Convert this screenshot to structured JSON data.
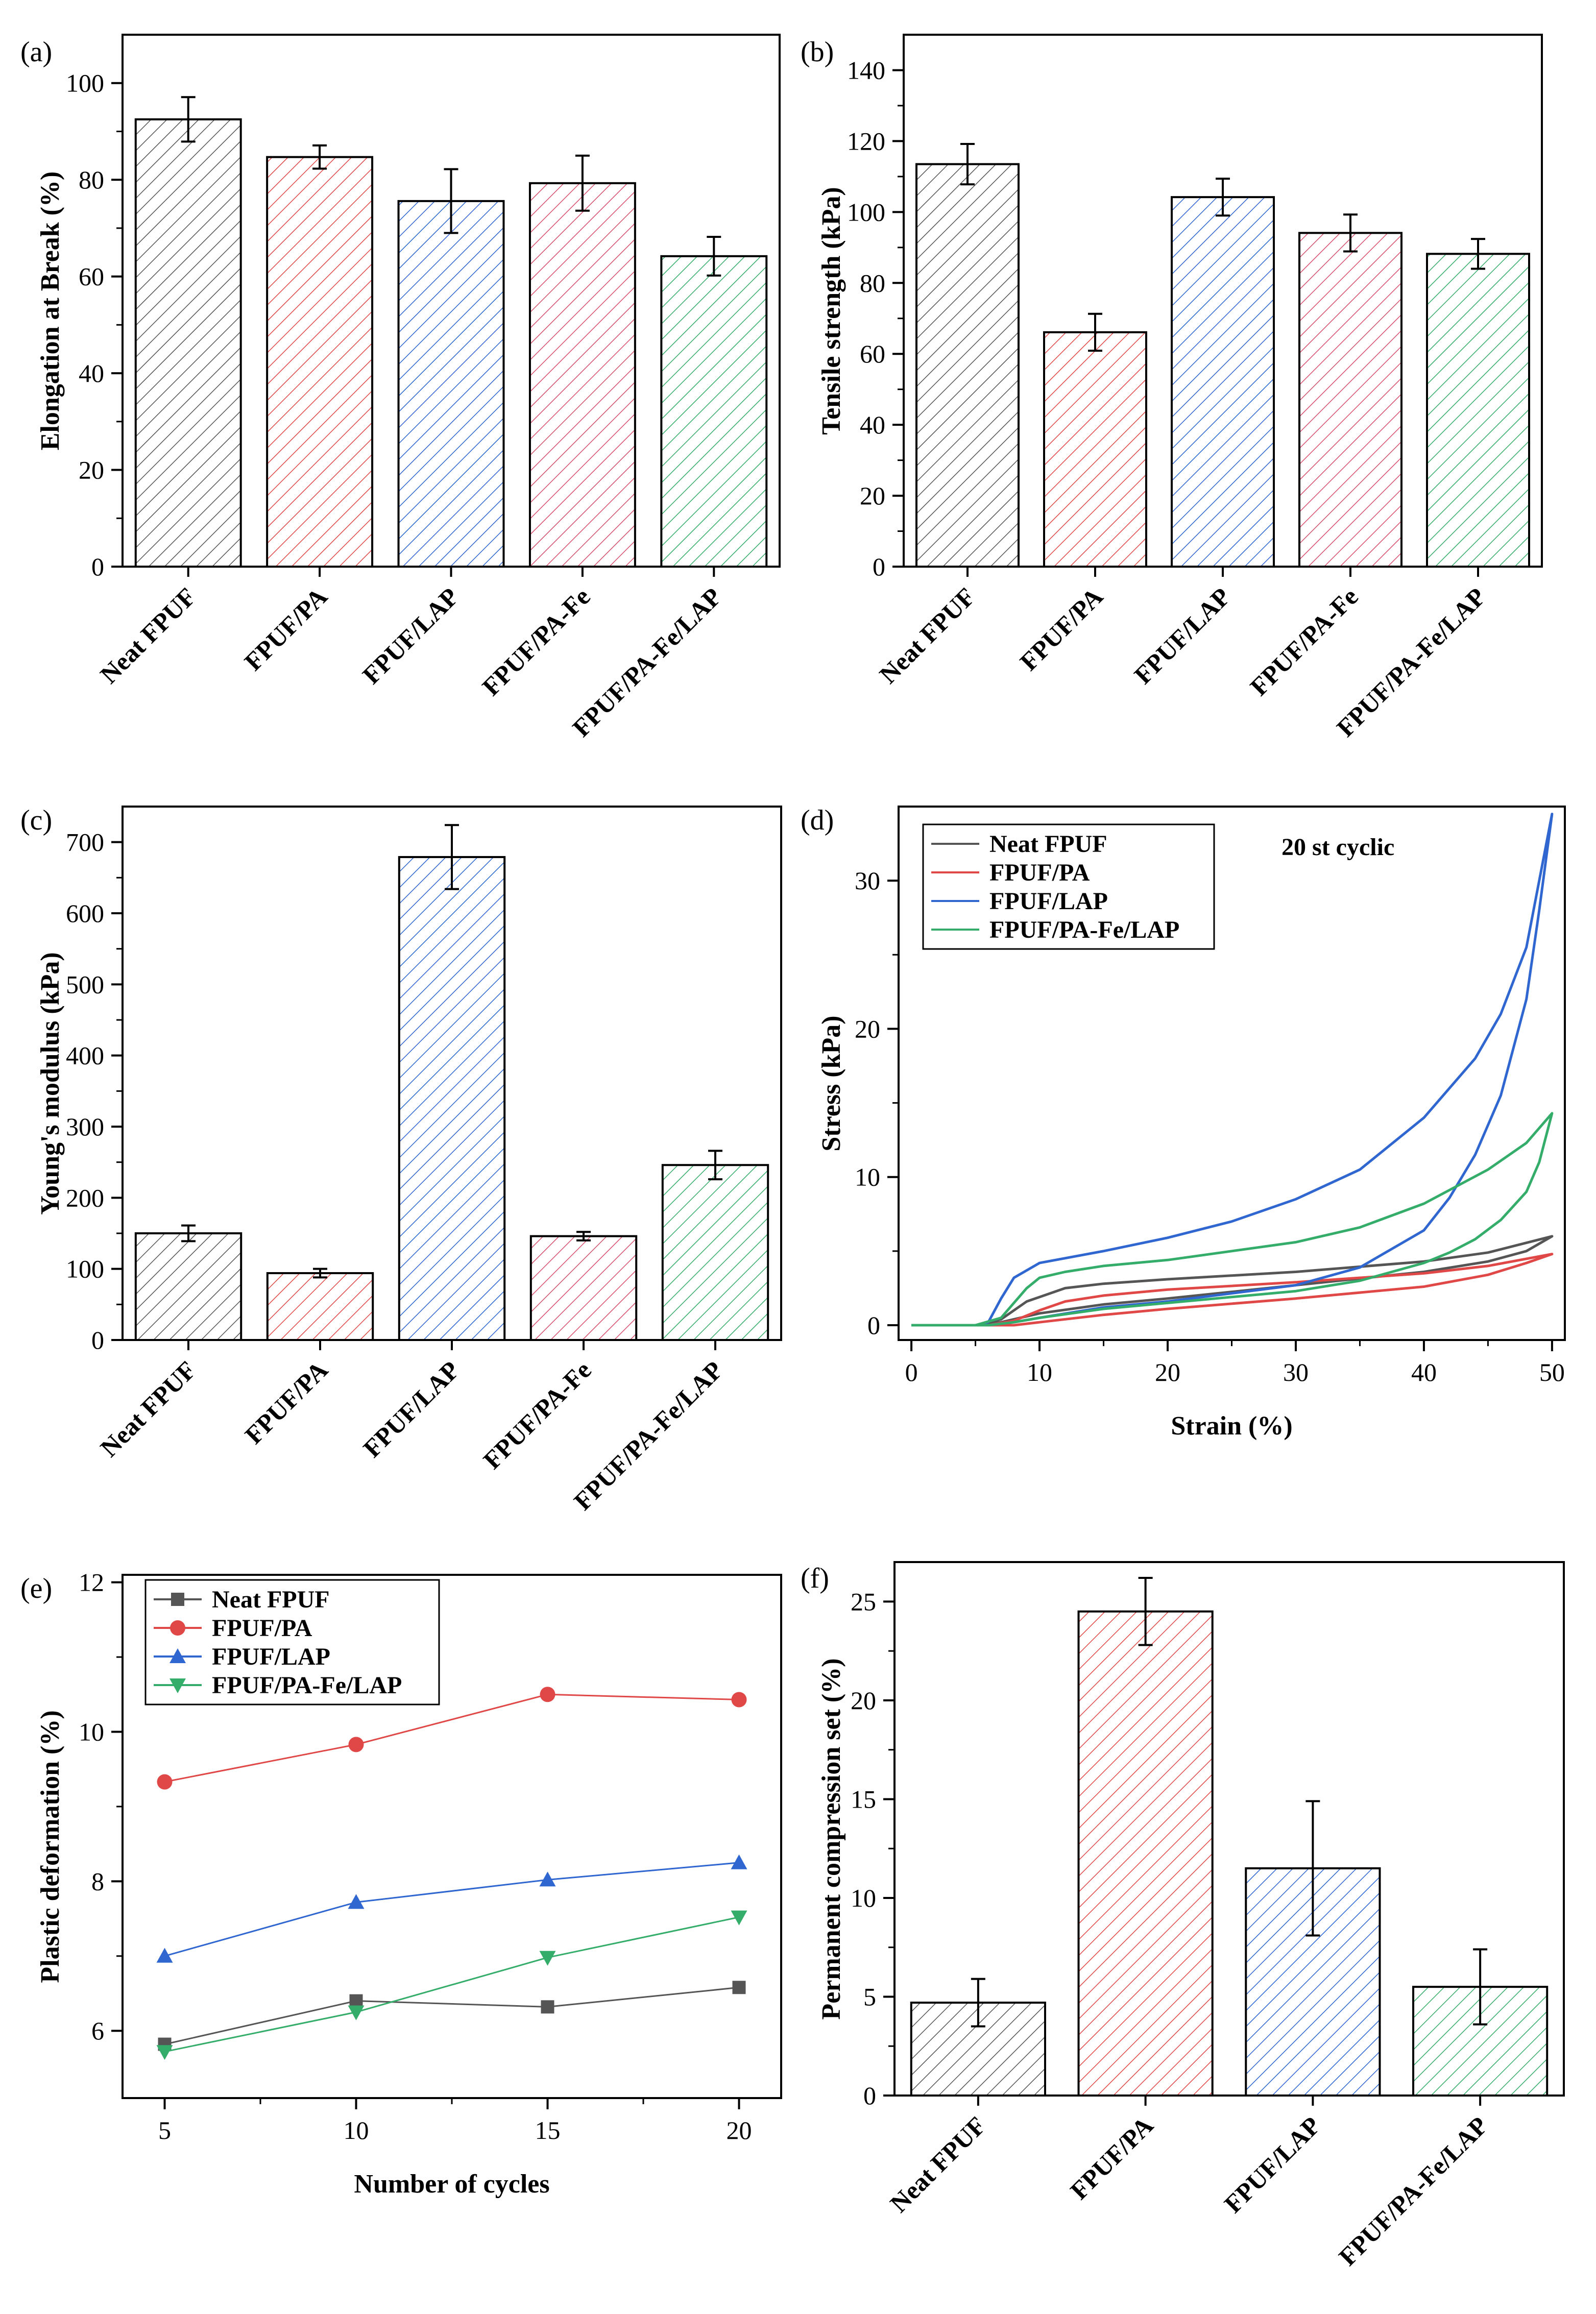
{
  "colors": {
    "Neat FPUF": "#555555",
    "FPUF/PA": "#e04848",
    "FPUF/LAP": "#2f66d0",
    "FPUF/PA-Fe": "#d64f6e",
    "FPUF/PA-Fe/LAP": "#35ad6a"
  },
  "chart_data": [
    {
      "panel": "(a)",
      "type": "bar",
      "categories": [
        "Neat FPUF",
        "FPUF/PA",
        "FPUF/LAP",
        "FPUF/PA-Fe",
        "FPUF/PA-Fe/LAP"
      ],
      "values": [
        92.5,
        84.7,
        75.6,
        79.3,
        64.2
      ],
      "errors": [
        4.6,
        2.4,
        6.6,
        5.7,
        4.0
      ],
      "xlabel": "",
      "ylabel": "Elongation at Break (%)",
      "ylim": [
        0,
        110
      ],
      "yticks": [
        0,
        20,
        40,
        60,
        80,
        100
      ]
    },
    {
      "panel": "(b)",
      "type": "bar",
      "categories": [
        "Neat FPUF",
        "FPUF/PA",
        "FPUF/LAP",
        "FPUF/PA-Fe",
        "FPUF/PA-Fe/LAP"
      ],
      "values": [
        113.5,
        66.1,
        104.2,
        94.1,
        88.2
      ],
      "errors": [
        5.7,
        5.2,
        5.2,
        5.2,
        4.2
      ],
      "xlabel": "",
      "ylabel": "Tensile strength (kPa)",
      "ylim": [
        0,
        150
      ],
      "yticks": [
        0,
        20,
        40,
        60,
        80,
        100,
        120,
        140
      ]
    },
    {
      "panel": "(c)",
      "type": "bar",
      "categories": [
        "Neat FPUF",
        "FPUF/PA",
        "FPUF/LAP",
        "FPUF/PA-Fe",
        "FPUF/PA-Fe/LAP"
      ],
      "values": [
        150,
        94,
        679,
        146,
        246
      ],
      "errors": [
        11,
        6,
        45,
        6,
        20
      ],
      "xlabel": "",
      "ylabel": "Young's modulus (kPa)",
      "ylim": [
        0,
        750
      ],
      "yticks": [
        0,
        100,
        200,
        300,
        400,
        500,
        600,
        700
      ]
    },
    {
      "panel": "(d)",
      "type": "line",
      "xlabel": "Strain (%)",
      "ylabel": "Stress (kPa)",
      "xlim": [
        -1,
        51
      ],
      "ylim": [
        -1,
        35
      ],
      "xticks": [
        0,
        10,
        20,
        30,
        40,
        50
      ],
      "yticks": [
        0,
        10,
        20,
        30
      ],
      "annotation": "20 st cyclic",
      "legend": [
        "Neat FPUF",
        "FPUF/PA",
        "FPUF/LAP",
        "FPUF/PA-Fe/LAP"
      ],
      "series": [
        {
          "name": "Neat FPUF",
          "color": "#555555",
          "x": [
            0,
            5,
            7,
            9,
            12,
            15,
            20,
            30,
            40,
            45,
            50,
            48,
            45,
            40,
            30,
            20,
            15,
            10,
            7,
            5,
            0
          ],
          "y": [
            0,
            0,
            0.4,
            1.6,
            2.5,
            2.8,
            3.1,
            3.6,
            4.3,
            4.9,
            6.0,
            5.0,
            4.3,
            3.6,
            2.7,
            1.8,
            1.4,
            0.8,
            0.2,
            0,
            0
          ]
        },
        {
          "name": "FPUF/PA",
          "color": "#e04848",
          "x": [
            0,
            6,
            8,
            10,
            12,
            15,
            20,
            30,
            40,
            45,
            50,
            48,
            45,
            40,
            30,
            20,
            15,
            10,
            8,
            6,
            0
          ],
          "y": [
            0,
            0,
            0.3,
            1.0,
            1.6,
            2.0,
            2.4,
            2.9,
            3.5,
            4.0,
            4.8,
            4.2,
            3.4,
            2.6,
            1.8,
            1.1,
            0.7,
            0.2,
            0,
            0,
            0
          ]
        },
        {
          "name": "FPUF/LAP",
          "color": "#2f66d0",
          "x": [
            0,
            5,
            6,
            7,
            8,
            10,
            15,
            20,
            25,
            30,
            35,
            40,
            44,
            46,
            48,
            50,
            49,
            48,
            46,
            44,
            42,
            40,
            35,
            30,
            20,
            15,
            10,
            8,
            6,
            5,
            0
          ],
          "y": [
            0,
            0,
            0.2,
            1.8,
            3.2,
            4.2,
            5.0,
            5.9,
            7.0,
            8.5,
            10.5,
            14.0,
            18.0,
            21.0,
            25.5,
            34.5,
            28.0,
            22.0,
            15.5,
            11.5,
            8.6,
            6.4,
            3.9,
            2.7,
            1.6,
            1.2,
            0.5,
            0.2,
            0,
            0,
            0
          ]
        },
        {
          "name": "FPUF/PA-Fe/LAP",
          "color": "#35ad6a",
          "x": [
            0,
            5,
            7,
            8,
            9,
            10,
            12,
            15,
            20,
            30,
            35,
            40,
            45,
            48,
            50,
            49,
            48,
            46,
            44,
            42,
            40,
            35,
            30,
            20,
            15,
            10,
            8,
            6,
            5,
            0
          ],
          "y": [
            0,
            0,
            0.5,
            1.5,
            2.5,
            3.2,
            3.6,
            4.0,
            4.4,
            5.6,
            6.6,
            8.2,
            10.5,
            12.3,
            14.3,
            11.0,
            9.0,
            7.1,
            5.8,
            4.9,
            4.2,
            3.0,
            2.3,
            1.5,
            1.1,
            0.5,
            0.2,
            0,
            0,
            0
          ]
        }
      ]
    },
    {
      "panel": "(e)",
      "type": "line",
      "xlabel": "Number of cycles",
      "ylabel": "Plastic deformation (%)",
      "xlim": [
        3.9,
        21.1
      ],
      "ylim": [
        5.1,
        12.1
      ],
      "xticks": [
        5,
        10,
        15,
        20
      ],
      "yticks": [
        6,
        8,
        10,
        12
      ],
      "legend": [
        "Neat FPUF",
        "FPUF/PA",
        "FPUF/LAP",
        "FPUF/PA-Fe/LAP"
      ],
      "series": [
        {
          "name": "Neat FPUF",
          "color": "#555555",
          "marker": "square",
          "x": [
            5,
            10,
            15,
            20
          ],
          "y": [
            5.82,
            6.4,
            6.32,
            6.58
          ]
        },
        {
          "name": "FPUF/PA",
          "color": "#e04848",
          "marker": "circle",
          "x": [
            5,
            10,
            15,
            20
          ],
          "y": [
            9.33,
            9.83,
            10.5,
            10.43
          ]
        },
        {
          "name": "FPUF/LAP",
          "color": "#2f66d0",
          "marker": "triangle-up",
          "x": [
            5,
            10,
            15,
            20
          ],
          "y": [
            7.0,
            7.72,
            8.02,
            8.25
          ]
        },
        {
          "name": "FPUF/PA-Fe/LAP",
          "color": "#35ad6a",
          "marker": "triangle-down",
          "x": [
            5,
            10,
            15,
            20
          ],
          "y": [
            5.72,
            6.25,
            6.98,
            7.52
          ]
        }
      ]
    },
    {
      "panel": "(f)",
      "type": "bar",
      "categories": [
        "Neat FPUF",
        "FPUF/PA",
        "FPUF/LAP",
        "FPUF/PA-Fe/LAP"
      ],
      "values": [
        4.7,
        24.5,
        11.5,
        5.5
      ],
      "errors": [
        1.2,
        1.7,
        3.4,
        1.9
      ],
      "xlabel": "",
      "ylabel": "Permanent compression set (%)",
      "ylim": [
        0,
        27
      ],
      "yticks": [
        0,
        5,
        10,
        15,
        20,
        25
      ]
    }
  ]
}
